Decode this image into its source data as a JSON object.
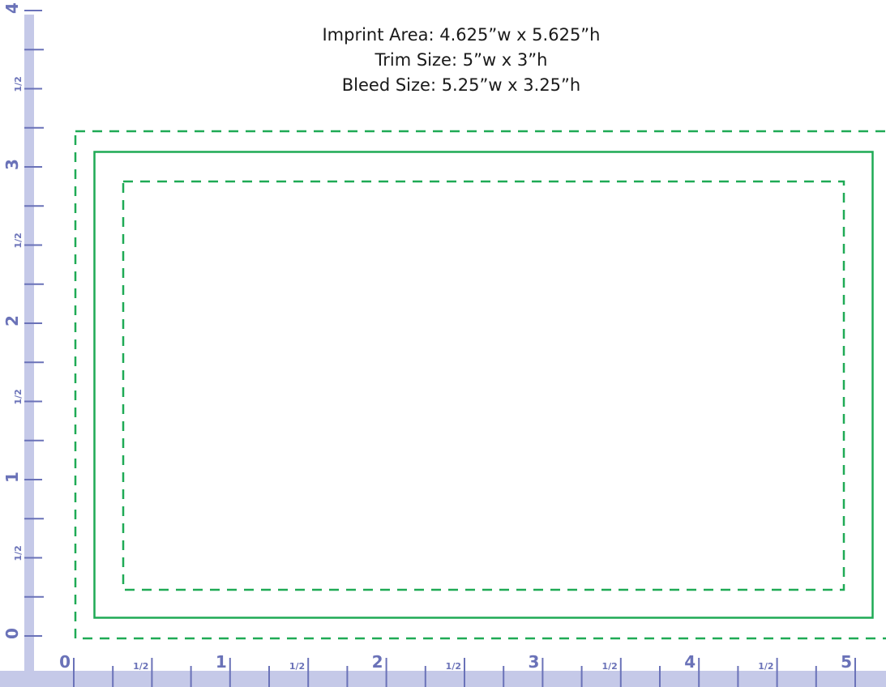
{
  "spec": {
    "imprint": "Imprint Area: 4.625”w x 5.625”h",
    "trim": "Trim Size: 5”w x 3”h",
    "bleed": "Bleed Size: 5.25”w x 3.25”h"
  },
  "ruler": {
    "unit": "inch",
    "horizontal_labels": [
      "0",
      "1/2",
      "1",
      "1/2",
      "2",
      "1/2",
      "3",
      "1/2",
      "4",
      "1/2",
      "5"
    ],
    "vertical_labels": [
      "0",
      "1/2",
      "1",
      "1/2",
      "2",
      "1/2",
      "3",
      "1/2",
      "4"
    ]
  },
  "colors": {
    "ruler_fill": "#c5c9e8",
    "ruler_ink": "#6a72b8",
    "guide_green": "#1faa55",
    "text": "#1a1a1a"
  },
  "guides": {
    "bleed_style": "dashed",
    "trim_style": "solid",
    "imprint_style": "dashed"
  }
}
